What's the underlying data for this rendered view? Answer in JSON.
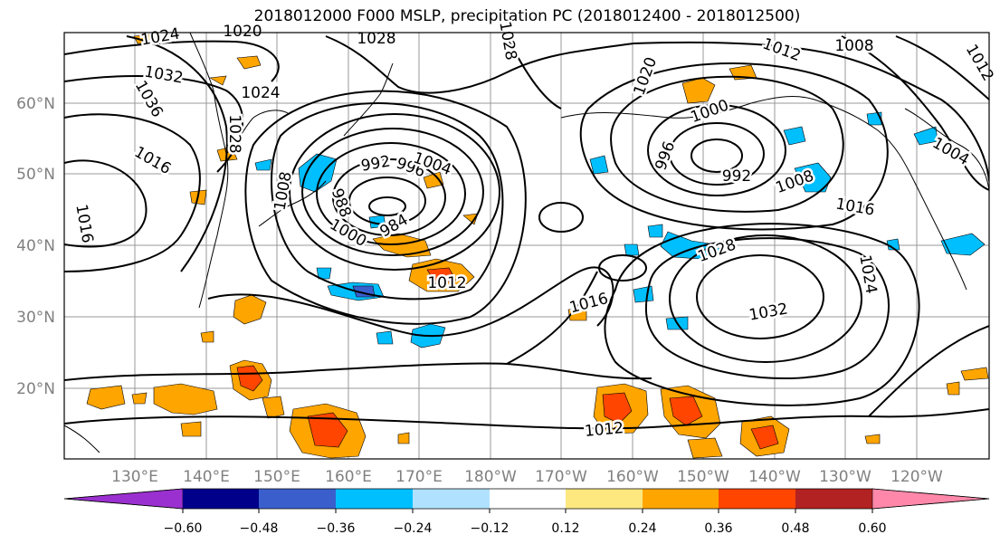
{
  "title": "2018012000 F000 MSLP, precipitation PC (2018012400 - 2018012500)",
  "latitude_labels": [
    "60°N",
    "50°N",
    "40°N",
    "30°N",
    "20°N"
  ],
  "longitude_labels": [
    "130°E",
    "140°E",
    "150°E",
    "160°E",
    "170°E",
    "180°W",
    "170°W",
    "160°W",
    "150°W",
    "140°W",
    "130°W",
    "120°W"
  ],
  "isobar_labels": [
    {
      "text": "1024"
    },
    {
      "text": "1020"
    },
    {
      "text": "1028"
    },
    {
      "text": "1028"
    },
    {
      "text": "1032"
    },
    {
      "text": "1036"
    },
    {
      "text": "1024"
    },
    {
      "text": "1016"
    },
    {
      "text": "1016"
    },
    {
      "text": "1008"
    },
    {
      "text": "1028"
    },
    {
      "text": "992"
    },
    {
      "text": "996"
    },
    {
      "text": "1004"
    },
    {
      "text": "988"
    },
    {
      "text": "984"
    },
    {
      "text": "1000"
    },
    {
      "text": "1012"
    },
    {
      "text": "1020"
    },
    {
      "text": "1012"
    },
    {
      "text": "1008"
    },
    {
      "text": "1000"
    },
    {
      "text": "996"
    },
    {
      "text": "992"
    },
    {
      "text": "1004"
    },
    {
      "text": "1008"
    },
    {
      "text": "1016"
    },
    {
      "text": "1028"
    },
    {
      "text": "1024"
    },
    {
      "text": "1032"
    },
    {
      "text": "1016"
    },
    {
      "text": "1012"
    },
    {
      "text": "1012"
    }
  ],
  "colorbar": {
    "ticks": [
      "−0.60",
      "−0.48",
      "−0.36",
      "−0.24",
      "−0.12",
      "0.12",
      "0.24",
      "0.36",
      "0.48",
      "0.60"
    ],
    "colors": [
      "#9b30d0",
      "#00008b",
      "#3a5fcd",
      "#00bfff",
      "#b0e2ff",
      "#ffffff",
      "#fde880",
      "#ffa500",
      "#ff4500",
      "#b22222",
      "#ff88aa"
    ]
  },
  "colors": {
    "positive_light": "#fde880",
    "positive_mid": "#ffa500",
    "positive_high": "#ff4500",
    "negative_light": "#b0e2ff",
    "negative_mid": "#00bfff",
    "negative_high": "#3a5fcd"
  }
}
